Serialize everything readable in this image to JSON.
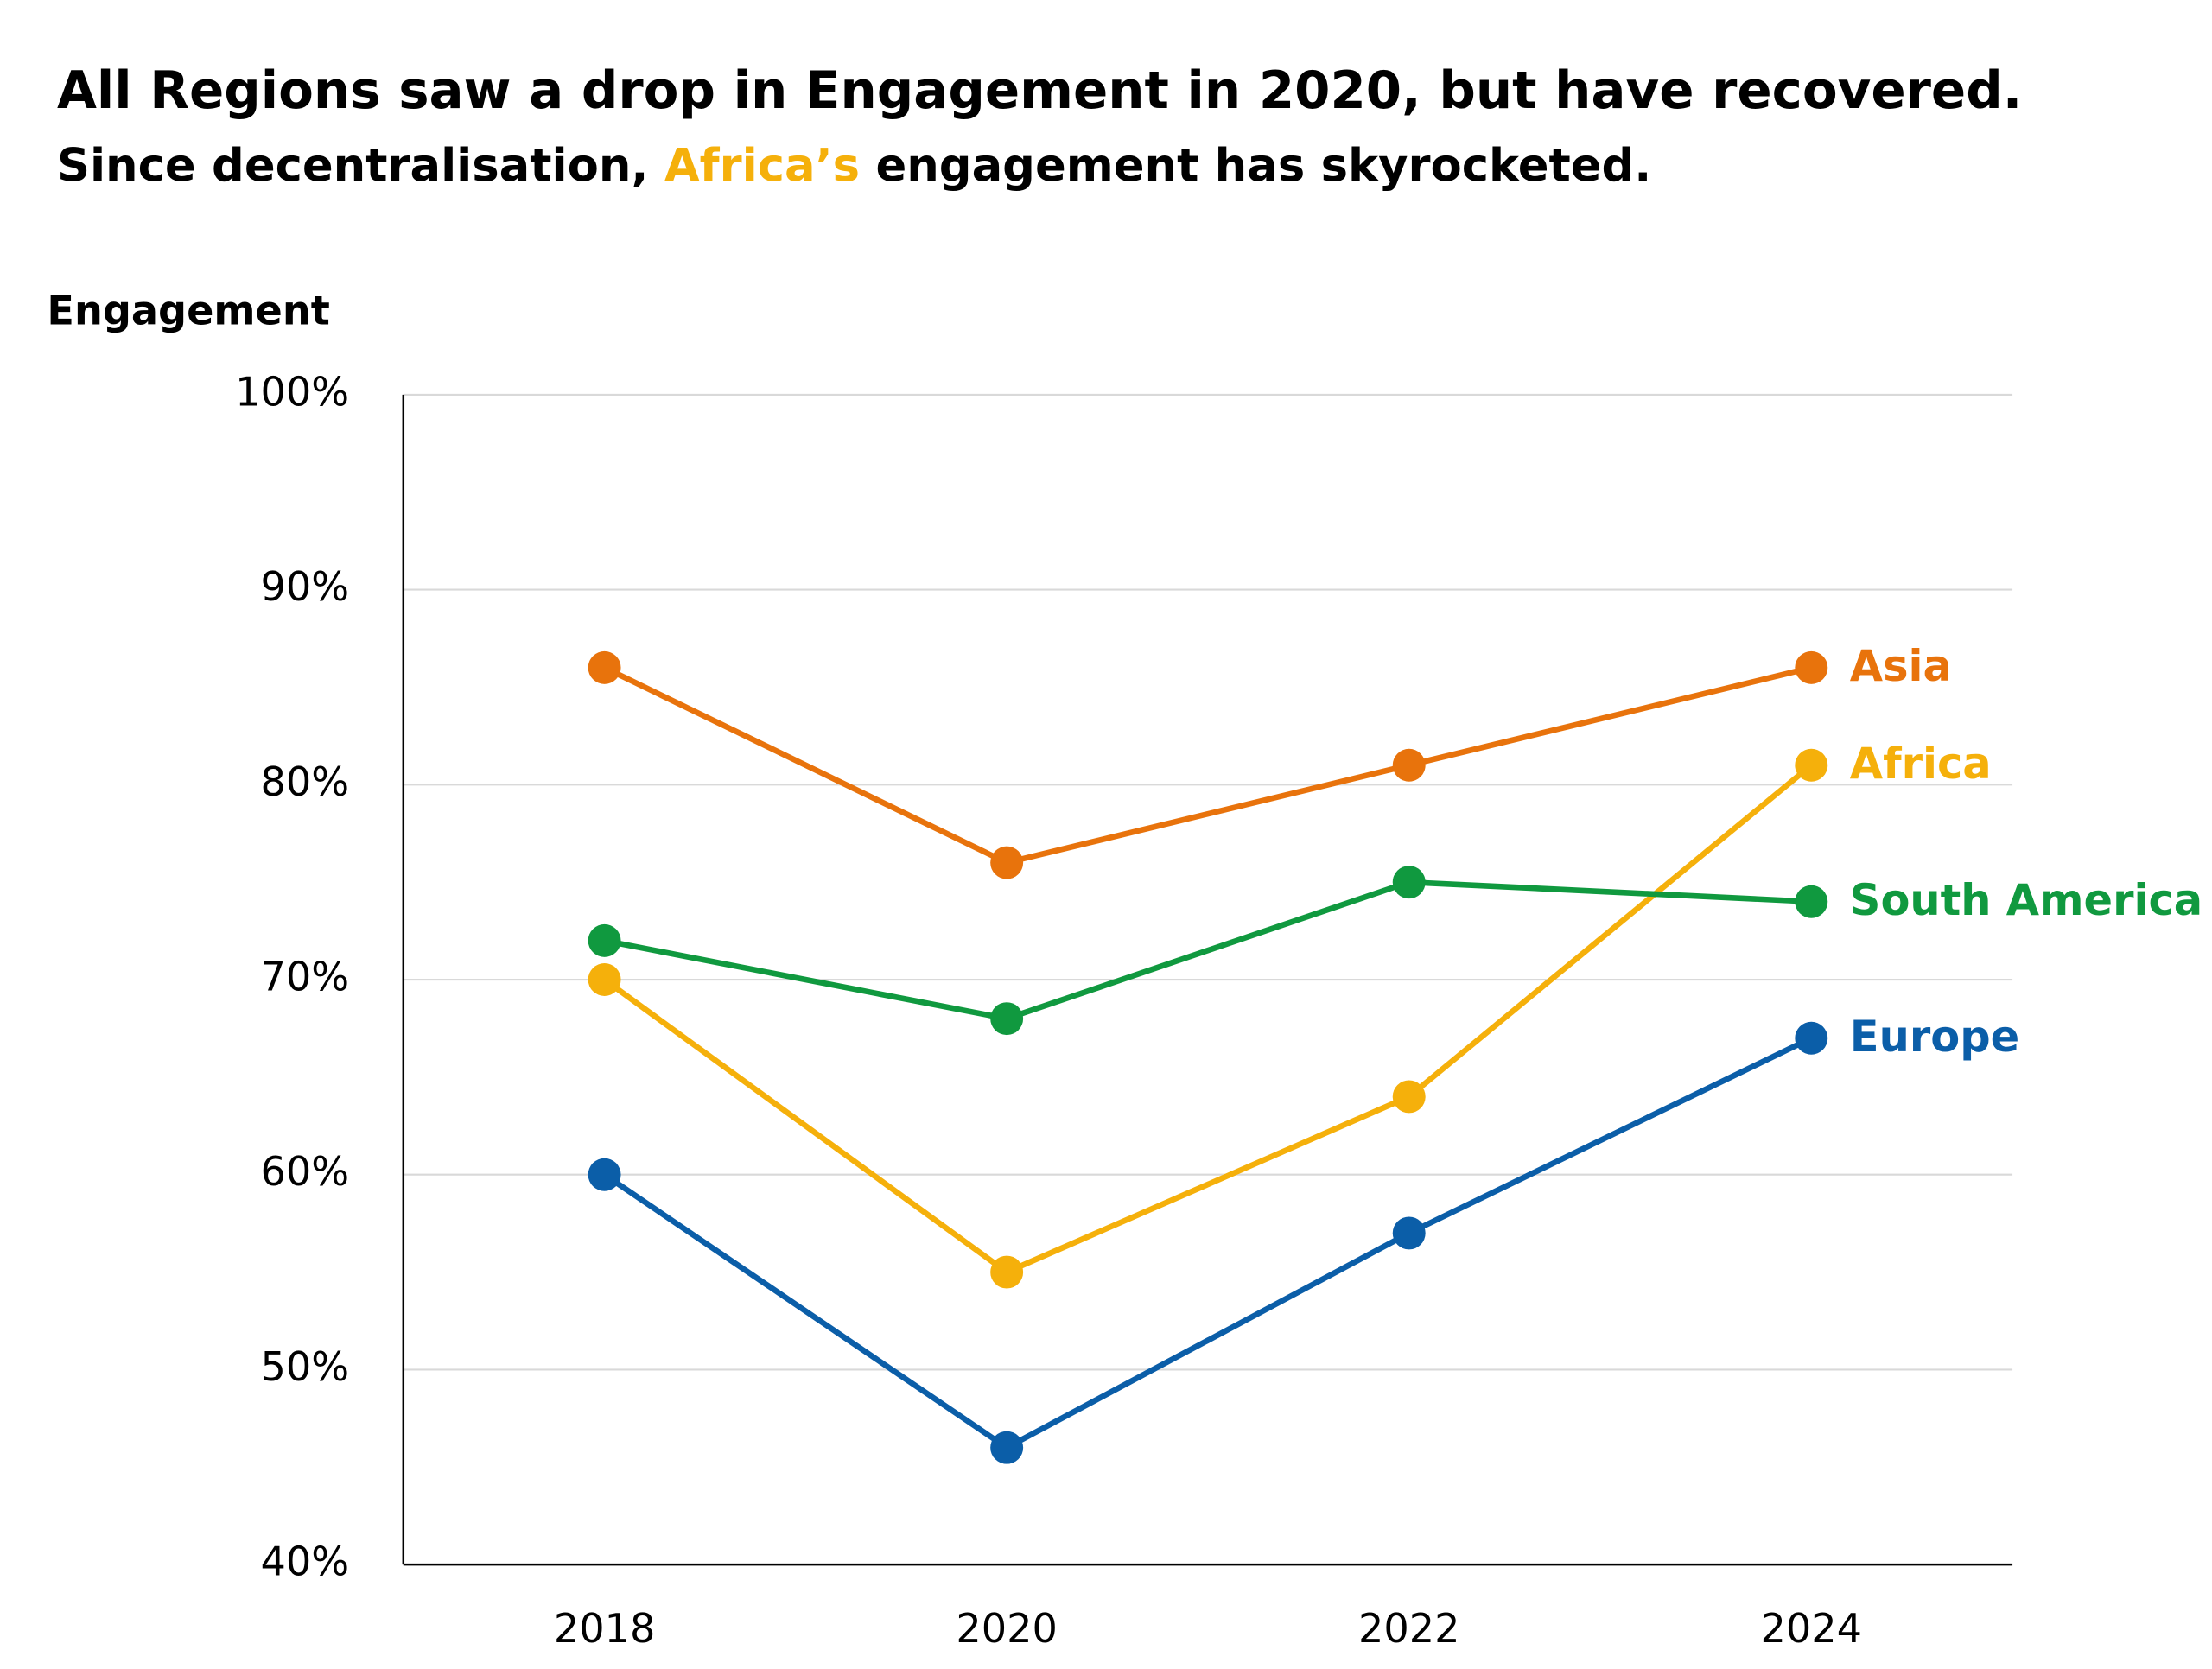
{
  "chart_data": {
    "type": "line",
    "title": "All Regions saw a drop in Engagement in 2020, but have recovered.",
    "subtitle": [
      "Since decentralisation, ",
      "Africa’s",
      " engagement has skyrocketed."
    ],
    "y_label": "Engagement",
    "categories": [
      "2018",
      "2020",
      "2022",
      "2024"
    ],
    "series": [
      {
        "name": "Asia",
        "color": "#e8730c",
        "values": [
          86,
          76,
          81,
          86
        ]
      },
      {
        "name": "Africa",
        "color": "#f5b00b",
        "values": [
          70,
          55,
          64,
          81
        ]
      },
      {
        "name": "South America",
        "color": "#10993f",
        "values": [
          72,
          68,
          75,
          74
        ]
      },
      {
        "name": "Europe",
        "color": "#0b5ea8",
        "values": [
          60,
          46,
          57,
          67
        ]
      }
    ],
    "ylim": [
      40,
      100
    ],
    "yticks": [
      {
        "value": 40,
        "label": "40%"
      },
      {
        "value": 50,
        "label": "50%"
      },
      {
        "value": 60,
        "label": "60%"
      },
      {
        "value": 70,
        "label": "70%"
      },
      {
        "value": 80,
        "label": "80%"
      },
      {
        "value": 90,
        "label": "90%"
      },
      {
        "value": 100,
        "label": "100%"
      }
    ],
    "grid": true
  }
}
